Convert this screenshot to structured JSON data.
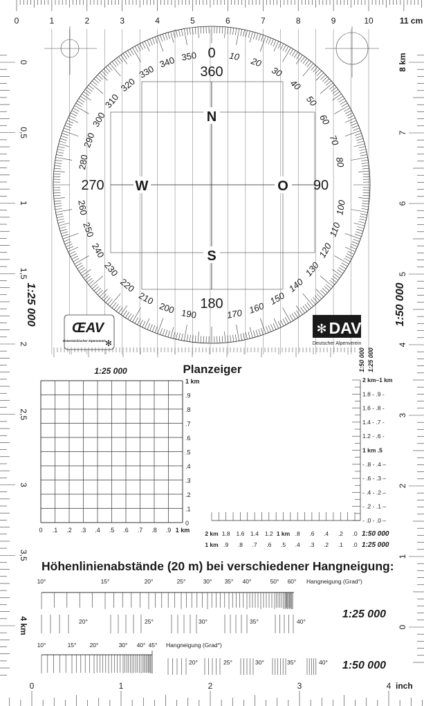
{
  "top_ruler": {
    "labels": [
      "0",
      "1",
      "2",
      "3",
      "4",
      "5",
      "6",
      "7",
      "8",
      "9",
      "10"
    ],
    "unit": "11 cm"
  },
  "compass": {
    "degree_labels": [
      "0",
      "10",
      "20",
      "30",
      "40",
      "50",
      "60",
      "70",
      "80",
      "100",
      "110",
      "120",
      "130",
      "140",
      "150",
      "160",
      "170",
      "190",
      "200",
      "210",
      "220",
      "230",
      "240",
      "250",
      "260",
      "280",
      "290",
      "300",
      "310",
      "320",
      "330",
      "340",
      "350"
    ],
    "inner": {
      "north_deg": "360",
      "east_deg": "90",
      "south_deg": "180",
      "west_deg": "270"
    },
    "cardinals": {
      "n": "N",
      "o": "O",
      "s": "S",
      "w": "W"
    }
  },
  "logos": {
    "oeav": {
      "mark": "ŒAV",
      "text": "Österreichischer Alpenverein"
    },
    "dav": {
      "mark": "DAV",
      "text": "Deutscher Alpenverein"
    }
  },
  "left_ruler": {
    "labels": [
      "0",
      "0,5",
      "1",
      "1,5",
      "2",
      "2,5",
      "3",
      "3,5",
      "4 km"
    ],
    "scale": "1:25 000"
  },
  "right_ruler": {
    "labels": [
      "8 km",
      "7",
      "6",
      "5",
      "4",
      "3",
      "2",
      "1",
      "0"
    ],
    "scale": "1:50 000"
  },
  "planzeiger": {
    "title": "Planzeiger",
    "grid_scale": "1:25 000",
    "grid_y_labels": [
      "1 km",
      ".9",
      ".8",
      ".7",
      ".6",
      ".5",
      ".4",
      ".3",
      ".2",
      ".1",
      "0"
    ],
    "grid_x_labels": [
      "0",
      ".1",
      ".2",
      ".3",
      ".4",
      ".5",
      ".6",
      ".7",
      ".8",
      ".9",
      "1 km"
    ],
    "vertical_scale_titles": [
      "1:50 000",
      "1:25 000"
    ],
    "vertical_scale_labels": [
      "2 km–1 km",
      "1.8 - .9 -",
      "1.6 - .8 -",
      "1.4 - .7 -",
      "1.2 - .6 -",
      "1 km .5",
      "- .8 - .4 –",
      "- .6 - .3 –",
      "- .4 - .2 –",
      "- .2 - .1 –",
      "- .0 - .0 –"
    ],
    "h_row_50000": [
      "2 km",
      "1.8",
      "1.6",
      "1.4",
      "1.2",
      "1 km",
      ".8",
      ".6",
      ".4",
      ".2",
      ".0"
    ],
    "h_row_25000": [
      "1 km",
      ".9",
      ".8",
      ".7",
      ".6",
      ".5",
      ".4",
      ".3",
      ".2",
      ".1",
      ".0"
    ],
    "h_scale_50000": "1:50 000",
    "h_scale_25000": "1:25 000"
  },
  "slope": {
    "heading": "Höhenlinienabstände (20 m) bei verschiedener Hangneigung:",
    "axis_label": "Hangneigung (Grad°)",
    "scale_25000": {
      "title": "1:25 000",
      "labels": [
        "10°",
        "15°",
        "20°",
        "25°",
        "30°",
        "35°",
        "40°",
        "50°",
        "60°"
      ],
      "groups": [
        "20°",
        "25°",
        "30°",
        "35°",
        "40°"
      ]
    },
    "scale_50000": {
      "title": "1:50 000",
      "labels": [
        "10°",
        "15°",
        "20°",
        "30°",
        "40°",
        "45°"
      ],
      "groups": [
        "20°",
        "25°",
        "30°",
        "35°",
        "40°"
      ]
    }
  },
  "bottom_ruler": {
    "labels": [
      "0",
      "1",
      "2",
      "3",
      "4"
    ],
    "unit": "inch"
  }
}
